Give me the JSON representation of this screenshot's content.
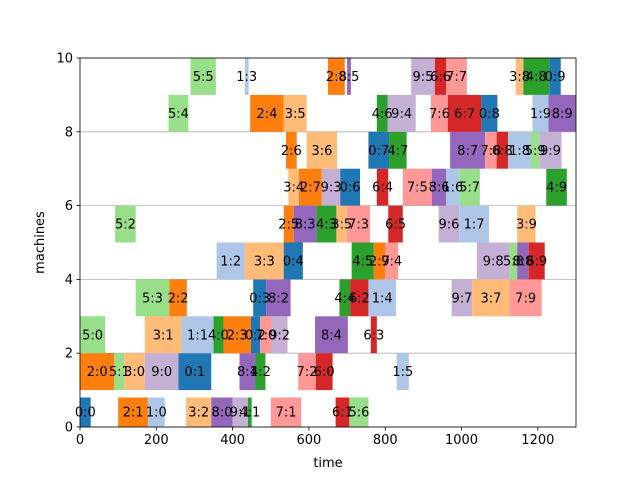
{
  "chart_data": {
    "type": "gantt",
    "xlabel": "time",
    "ylabel": "machines",
    "xlim": [
      0,
      1300
    ],
    "ylim": [
      0,
      10
    ],
    "x_ticks": [
      0,
      200,
      400,
      600,
      800,
      1000,
      1200
    ],
    "y_ticks": [
      0,
      2,
      4,
      6,
      8,
      10
    ],
    "grid": "horizontal",
    "palette": [
      "#1f77b4",
      "#aec7e8",
      "#ff7f0e",
      "#ffbb78",
      "#2ca02c",
      "#98df8a",
      "#d62728",
      "#ff9896",
      "#9467bd",
      "#c5b0d5"
    ],
    "tasks": [
      {
        "label": "0:0",
        "start": 0,
        "end": 28,
        "y0": 0,
        "y1": 0.8,
        "color": "#1f77b4"
      },
      {
        "label": "2:1",
        "start": 100,
        "end": 178,
        "y0": 0,
        "y1": 0.8,
        "color": "#ff7f0e"
      },
      {
        "label": "1:0",
        "start": 178,
        "end": 222,
        "y0": 0,
        "y1": 0.8,
        "color": "#aec7e8"
      },
      {
        "label": "3:2",
        "start": 278,
        "end": 344,
        "y0": 0,
        "y1": 0.8,
        "color": "#ffbb78"
      },
      {
        "label": "8:0",
        "start": 344,
        "end": 400,
        "y0": 0,
        "y1": 0.8,
        "color": "#9467bd"
      },
      {
        "label": "9:1",
        "start": 400,
        "end": 440,
        "y0": 0,
        "y1": 0.8,
        "color": "#c5b0d5"
      },
      {
        "label": "4:1",
        "start": 440,
        "end": 450,
        "y0": 0,
        "y1": 0.8,
        "color": "#2ca02c"
      },
      {
        "label": "7:1",
        "start": 500,
        "end": 580,
        "y0": 0,
        "y1": 0.8,
        "color": "#ff9896"
      },
      {
        "label": "6:1",
        "start": 670,
        "end": 706,
        "y0": 0,
        "y1": 0.8,
        "color": "#d62728"
      },
      {
        "label": "5:6",
        "start": 706,
        "end": 756,
        "y0": 0,
        "y1": 0.8,
        "color": "#98df8a"
      },
      {
        "label": "2:0",
        "start": 0,
        "end": 90,
        "y0": 1,
        "y1": 2,
        "color": "#ff7f0e"
      },
      {
        "label": "5:1",
        "start": 90,
        "end": 116,
        "y0": 1,
        "y1": 2,
        "color": "#98df8a"
      },
      {
        "label": "3:0",
        "start": 116,
        "end": 170,
        "y0": 1,
        "y1": 2,
        "color": "#ffbb78"
      },
      {
        "label": "9:0",
        "start": 170,
        "end": 258,
        "y0": 1,
        "y1": 2,
        "color": "#c5b0d5"
      },
      {
        "label": "0:1",
        "start": 258,
        "end": 344,
        "y0": 1,
        "y1": 2,
        "color": "#1f77b4"
      },
      {
        "label": "8:1",
        "start": 418,
        "end": 460,
        "y0": 1,
        "y1": 2,
        "color": "#9467bd"
      },
      {
        "label": "4:2",
        "start": 460,
        "end": 486,
        "y0": 1,
        "y1": 2,
        "color": "#2ca02c"
      },
      {
        "label": "7:2",
        "start": 572,
        "end": 618,
        "y0": 1,
        "y1": 2,
        "color": "#ff9896"
      },
      {
        "label": "6:0",
        "start": 618,
        "end": 662,
        "y0": 1,
        "y1": 2,
        "color": "#d62728"
      },
      {
        "label": "1:5",
        "start": 830,
        "end": 862,
        "y0": 1,
        "y1": 2,
        "color": "#aec7e8"
      },
      {
        "label": "5:0",
        "start": 0,
        "end": 66,
        "y0": 2,
        "y1": 3,
        "color": "#98df8a"
      },
      {
        "label": "3:1",
        "start": 170,
        "end": 266,
        "y0": 2,
        "y1": 3,
        "color": "#ffbb78"
      },
      {
        "label": "1:1",
        "start": 266,
        "end": 350,
        "y0": 2,
        "y1": 3,
        "color": "#aec7e8"
      },
      {
        "label": "4:0",
        "start": 350,
        "end": 376,
        "y0": 2,
        "y1": 3,
        "color": "#2ca02c"
      },
      {
        "label": "2:3",
        "start": 376,
        "end": 448,
        "y0": 2,
        "y1": 3,
        "color": "#ff7f0e"
      },
      {
        "label": "0:2",
        "start": 448,
        "end": 472,
        "y0": 2,
        "y1": 3,
        "color": "#1f77b4"
      },
      {
        "label": "7:0",
        "start": 472,
        "end": 502,
        "y0": 2,
        "y1": 3,
        "color": "#ff9896"
      },
      {
        "label": "9:2",
        "start": 502,
        "end": 544,
        "y0": 2,
        "y1": 3,
        "color": "#c5b0d5"
      },
      {
        "label": "8:4",
        "start": 616,
        "end": 702,
        "y0": 2,
        "y1": 3,
        "color": "#9467bd"
      },
      {
        "label": "6:3",
        "start": 762,
        "end": 778,
        "y0": 2,
        "y1": 3,
        "color": "#d62728"
      },
      {
        "label": "5:3",
        "start": 146,
        "end": 234,
        "y0": 3,
        "y1": 4,
        "color": "#98df8a"
      },
      {
        "label": "2:2",
        "start": 234,
        "end": 280,
        "y0": 3,
        "y1": 4,
        "color": "#ff7f0e"
      },
      {
        "label": "0:3",
        "start": 454,
        "end": 488,
        "y0": 3,
        "y1": 4,
        "color": "#1f77b4"
      },
      {
        "label": "8:2",
        "start": 488,
        "end": 552,
        "y0": 3,
        "y1": 4,
        "color": "#9467bd"
      },
      {
        "label": "4:4",
        "start": 680,
        "end": 708,
        "y0": 3,
        "y1": 4,
        "color": "#2ca02c"
      },
      {
        "label": "6:2",
        "start": 708,
        "end": 756,
        "y0": 3,
        "y1": 4,
        "color": "#d62728"
      },
      {
        "label": "1:4",
        "start": 756,
        "end": 828,
        "y0": 3,
        "y1": 4,
        "color": "#aec7e8"
      },
      {
        "label": "9:7",
        "start": 974,
        "end": 1028,
        "y0": 3,
        "y1": 4,
        "color": "#c5b0d5"
      },
      {
        "label": "3:7",
        "start": 1028,
        "end": 1126,
        "y0": 3,
        "y1": 4,
        "color": "#ffbb78"
      },
      {
        "label": "7:9",
        "start": 1126,
        "end": 1210,
        "y0": 3,
        "y1": 4,
        "color": "#ff9896"
      },
      {
        "label": "1:2",
        "start": 358,
        "end": 432,
        "y0": 4,
        "y1": 5,
        "color": "#aec7e8"
      },
      {
        "label": "3:3",
        "start": 432,
        "end": 534,
        "y0": 4,
        "y1": 5,
        "color": "#ffbb78"
      },
      {
        "label": "0:4",
        "start": 534,
        "end": 584,
        "y0": 4,
        "y1": 5,
        "color": "#1f77b4"
      },
      {
        "label": "4:5",
        "start": 712,
        "end": 770,
        "y0": 4,
        "y1": 5,
        "color": "#2ca02c"
      },
      {
        "label": "2:7",
        "start": 770,
        "end": 800,
        "y0": 4,
        "y1": 5,
        "color": "#ff7f0e"
      },
      {
        "label": "9:4",
        "start": 800,
        "end": 834,
        "y0": 4,
        "y1": 5,
        "color": "#ff9896"
      },
      {
        "label": "9:8",
        "start": 1040,
        "end": 1126,
        "y0": 4,
        "y1": 5,
        "color": "#c5b0d5"
      },
      {
        "label": "5:8",
        "start": 1126,
        "end": 1146,
        "y0": 4,
        "y1": 5,
        "color": "#98df8a"
      },
      {
        "label": "8:8",
        "start": 1146,
        "end": 1176,
        "y0": 4,
        "y1": 5,
        "color": "#9467bd"
      },
      {
        "label": "6:9",
        "start": 1176,
        "end": 1218,
        "y0": 4,
        "y1": 5,
        "color": "#d62728"
      },
      {
        "label": "5:2",
        "start": 92,
        "end": 146,
        "y0": 5,
        "y1": 6,
        "color": "#98df8a"
      },
      {
        "label": "2:5",
        "start": 534,
        "end": 560,
        "y0": 5,
        "y1": 6,
        "color": "#ff7f0e"
      },
      {
        "label": "8:3",
        "start": 560,
        "end": 620,
        "y0": 5,
        "y1": 6,
        "color": "#9467bd"
      },
      {
        "label": "4:3",
        "start": 620,
        "end": 672,
        "y0": 5,
        "y1": 6,
        "color": "#2ca02c"
      },
      {
        "label": "3:5",
        "start": 672,
        "end": 700,
        "y0": 5,
        "y1": 6,
        "color": "#ffbb78"
      },
      {
        "label": "7:3",
        "start": 700,
        "end": 760,
        "y0": 5,
        "y1": 6,
        "color": "#ff9896"
      },
      {
        "label": "6:5",
        "start": 808,
        "end": 846,
        "y0": 5,
        "y1": 6,
        "color": "#d62728"
      },
      {
        "label": "9:6",
        "start": 940,
        "end": 994,
        "y0": 5,
        "y1": 6,
        "color": "#c5b0d5"
      },
      {
        "label": "1:7",
        "start": 994,
        "end": 1072,
        "y0": 5,
        "y1": 6,
        "color": "#aec7e8"
      },
      {
        "label": "3:9",
        "start": 1146,
        "end": 1194,
        "y0": 5,
        "y1": 6,
        "color": "#ffbb78"
      },
      {
        "label": "3:4",
        "start": 546,
        "end": 574,
        "y0": 6,
        "y1": 7,
        "color": "#ffbb78"
      },
      {
        "label": "2:7",
        "start": 574,
        "end": 634,
        "y0": 6,
        "y1": 7,
        "color": "#ff7f0e"
      },
      {
        "label": "9:3",
        "start": 634,
        "end": 682,
        "y0": 6,
        "y1": 7,
        "color": "#c5b0d5"
      },
      {
        "label": "0:6",
        "start": 682,
        "end": 734,
        "y0": 6,
        "y1": 7,
        "color": "#1f77b4"
      },
      {
        "label": "6:4",
        "start": 778,
        "end": 808,
        "y0": 6,
        "y1": 7,
        "color": "#d62728"
      },
      {
        "label": "7:5",
        "start": 846,
        "end": 922,
        "y0": 6,
        "y1": 7,
        "color": "#ff9896"
      },
      {
        "label": "8:6",
        "start": 922,
        "end": 960,
        "y0": 6,
        "y1": 7,
        "color": "#9467bd"
      },
      {
        "label": "1:6",
        "start": 960,
        "end": 994,
        "y0": 6,
        "y1": 7,
        "color": "#aec7e8"
      },
      {
        "label": "5:7",
        "start": 994,
        "end": 1048,
        "y0": 6,
        "y1": 7,
        "color": "#98df8a"
      },
      {
        "label": "4:9",
        "start": 1222,
        "end": 1276,
        "y0": 6,
        "y1": 7,
        "color": "#2ca02c"
      },
      {
        "label": "2:6",
        "start": 540,
        "end": 568,
        "y0": 7,
        "y1": 8,
        "color": "#ff7f0e"
      },
      {
        "label": "3:6",
        "start": 594,
        "end": 674,
        "y0": 7,
        "y1": 8,
        "color": "#ffbb78"
      },
      {
        "label": "0:7",
        "start": 756,
        "end": 810,
        "y0": 7,
        "y1": 8,
        "color": "#1f77b4"
      },
      {
        "label": "4:7",
        "start": 810,
        "end": 856,
        "y0": 7,
        "y1": 8,
        "color": "#2ca02c"
      },
      {
        "label": "8:7",
        "start": 970,
        "end": 1062,
        "y0": 7,
        "y1": 8,
        "color": "#9467bd"
      },
      {
        "label": "7:8",
        "start": 1062,
        "end": 1092,
        "y0": 7,
        "y1": 8,
        "color": "#ff9896"
      },
      {
        "label": "6:8",
        "start": 1092,
        "end": 1122,
        "y0": 7,
        "y1": 8,
        "color": "#d62728"
      },
      {
        "label": "1:8",
        "start": 1122,
        "end": 1182,
        "y0": 7,
        "y1": 8,
        "color": "#aec7e8"
      },
      {
        "label": "5:9",
        "start": 1182,
        "end": 1204,
        "y0": 7,
        "y1": 8,
        "color": "#98df8a"
      },
      {
        "label": "9:9",
        "start": 1204,
        "end": 1262,
        "y0": 7,
        "y1": 8,
        "color": "#c5b0d5"
      },
      {
        "label": "5:4",
        "start": 232,
        "end": 284,
        "y0": 8,
        "y1": 9,
        "color": "#98df8a"
      },
      {
        "label": "2:4",
        "start": 446,
        "end": 534,
        "y0": 8,
        "y1": 9,
        "color": "#ff7f0e"
      },
      {
        "label": "3:5",
        "start": 534,
        "end": 594,
        "y0": 8,
        "y1": 9,
        "color": "#ffbb78"
      },
      {
        "label": "4:6",
        "start": 778,
        "end": 806,
        "y0": 8,
        "y1": 9,
        "color": "#2ca02c"
      },
      {
        "label": "9:4",
        "start": 806,
        "end": 880,
        "y0": 8,
        "y1": 9,
        "color": "#c5b0d5"
      },
      {
        "label": "7:6",
        "start": 920,
        "end": 964,
        "y0": 8,
        "y1": 9,
        "color": "#ff9896"
      },
      {
        "label": "6:7",
        "start": 964,
        "end": 1052,
        "y0": 8,
        "y1": 9,
        "color": "#d62728"
      },
      {
        "label": "0:8",
        "start": 1052,
        "end": 1094,
        "y0": 8,
        "y1": 9,
        "color": "#1f77b4"
      },
      {
        "label": "1:9",
        "start": 1186,
        "end": 1228,
        "y0": 8,
        "y1": 9,
        "color": "#aec7e8"
      },
      {
        "label": "8:9",
        "start": 1228,
        "end": 1300,
        "y0": 8,
        "y1": 9,
        "color": "#9467bd"
      },
      {
        "label": "5:5",
        "start": 290,
        "end": 356,
        "y0": 9,
        "y1": 10,
        "color": "#98df8a"
      },
      {
        "label": "1:3",
        "start": 432,
        "end": 442,
        "y0": 9,
        "y1": 10,
        "color": "#aec7e8"
      },
      {
        "label": "2:8",
        "start": 650,
        "end": 694,
        "y0": 9,
        "y1": 10,
        "color": "#ff7f0e"
      },
      {
        "label": "8:5",
        "start": 700,
        "end": 710,
        "y0": 9,
        "y1": 10,
        "color": "#9467bd"
      },
      {
        "label": "9:5",
        "start": 868,
        "end": 930,
        "y0": 9,
        "y1": 10,
        "color": "#c5b0d5"
      },
      {
        "label": "6:6",
        "start": 930,
        "end": 960,
        "y0": 9,
        "y1": 10,
        "color": "#d62728"
      },
      {
        "label": "7:7",
        "start": 960,
        "end": 1014,
        "y0": 9,
        "y1": 10,
        "color": "#ff9896"
      },
      {
        "label": "3:8",
        "start": 1142,
        "end": 1162,
        "y0": 9,
        "y1": 10,
        "color": "#ffbb78"
      },
      {
        "label": "4:8",
        "start": 1162,
        "end": 1230,
        "y0": 9,
        "y1": 10,
        "color": "#2ca02c"
      },
      {
        "label": "0:9",
        "start": 1230,
        "end": 1260,
        "y0": 9,
        "y1": 10,
        "color": "#1f77b4"
      }
    ]
  }
}
